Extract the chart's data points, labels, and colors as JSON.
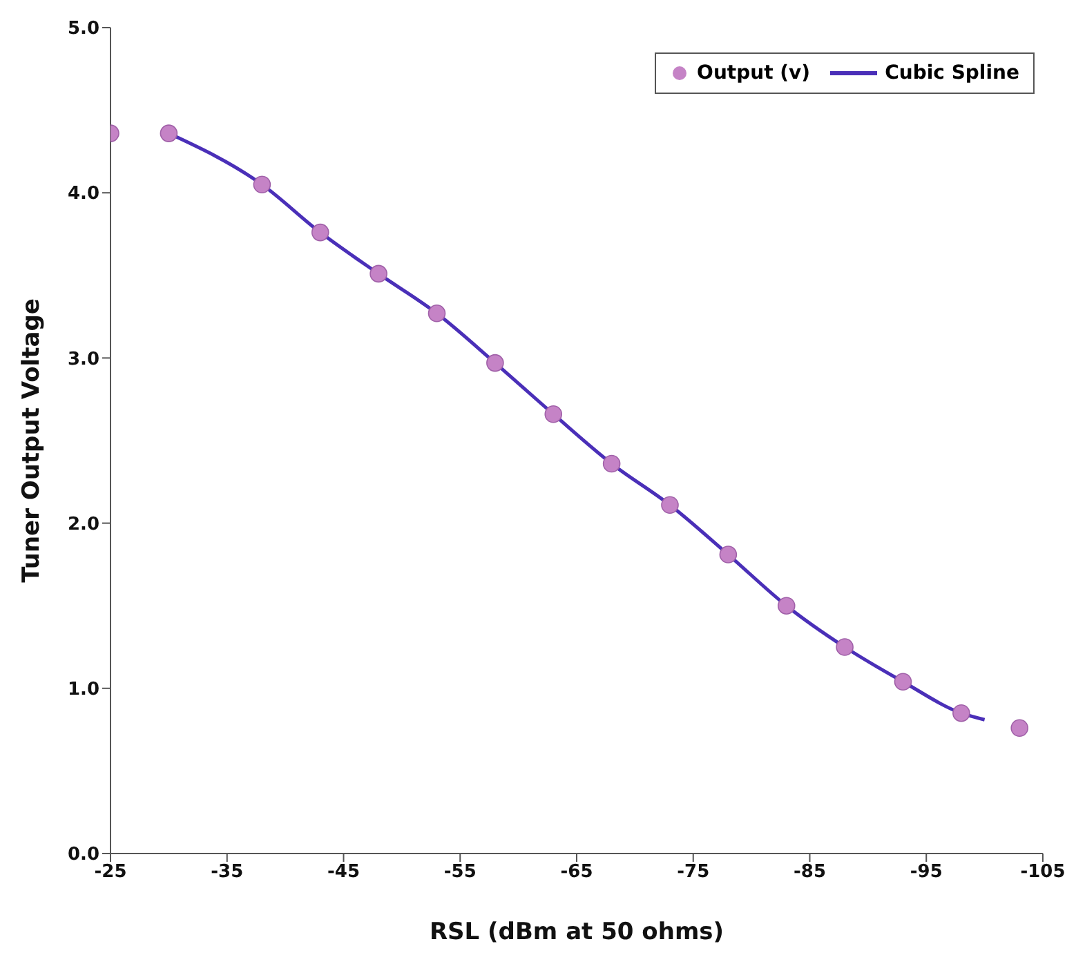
{
  "chart_data": {
    "type": "scatter",
    "xlabel": "RSL (dBm at 50 ohms)",
    "ylabel": "Tuner Output Voltage",
    "xlim": [
      -25,
      -105
    ],
    "xticks": [
      -25,
      -35,
      -45,
      -55,
      -65,
      -75,
      -85,
      -95,
      -105
    ],
    "ylim": [
      0,
      5
    ],
    "yticks": [
      {
        "value": 0,
        "label": "0.0"
      },
      {
        "value": 1,
        "label": "1.0"
      },
      {
        "value": 2,
        "label": "2.0"
      },
      {
        "value": 3,
        "label": "3.0"
      },
      {
        "value": 4,
        "label": "4.0"
      },
      {
        "value": 5,
        "label": "5.0"
      }
    ],
    "grid": false,
    "legend": "top right",
    "series": [
      {
        "name": "Output (v)",
        "marker": "circle",
        "color": "#c583c6",
        "x": [
          -25,
          -30,
          -38,
          -43,
          -48,
          -53,
          -58,
          -63,
          -68,
          -73,
          -78,
          -83,
          -88,
          -93,
          -98,
          -103
        ],
        "values": [
          4.36,
          4.36,
          4.05,
          3.76,
          3.51,
          3.27,
          2.97,
          2.66,
          2.36,
          2.11,
          1.81,
          1.5,
          1.25,
          1.04,
          0.85,
          0.76
        ]
      },
      {
        "name": "Cubic Spline",
        "type": "line",
        "marker": "none",
        "color": "#4a2fb8",
        "x": [
          -30,
          -38,
          -43,
          -48,
          -53,
          -58,
          -63,
          -68,
          -73,
          -78,
          -83,
          -88,
          -93,
          -98,
          -100
        ],
        "values": [
          4.36,
          4.05,
          3.76,
          3.51,
          3.27,
          2.97,
          2.66,
          2.36,
          2.11,
          1.81,
          1.5,
          1.25,
          1.04,
          0.85,
          0.81
        ]
      }
    ]
  }
}
